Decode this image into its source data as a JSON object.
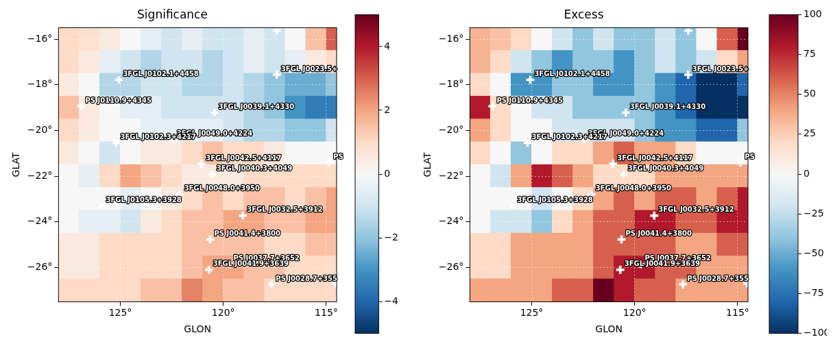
{
  "chart_data": [
    {
      "type": "heatmap",
      "title": "Significance",
      "x_label": "GLON",
      "y_label": "GLAT",
      "color": "RdBu_r",
      "grid": true,
      "xlim": [
        128,
        114.5
      ],
      "ylim": [
        -27.5,
        -15.5
      ],
      "xticks": [
        {
          "value": 125,
          "label": "125°"
        },
        {
          "value": 120,
          "label": "120°"
        },
        {
          "value": 115,
          "label": "115°"
        }
      ],
      "yticks": [
        {
          "value": -16,
          "label": "−16°"
        },
        {
          "value": -18,
          "label": "−18°"
        },
        {
          "value": -20,
          "label": "−20°"
        },
        {
          "value": -22,
          "label": "−22°"
        },
        {
          "value": -24,
          "label": "−24°"
        },
        {
          "value": -26,
          "label": "−26°"
        }
      ],
      "x": [
        127.5,
        126.5,
        125.5,
        124.5,
        123.5,
        122.5,
        121.5,
        120.5,
        119.5,
        118.5,
        117.5,
        116.5,
        115.5,
        114.5
      ],
      "y": [
        -16,
        -17,
        -18,
        -19,
        -20,
        -21,
        -22,
        -23,
        -24,
        -25,
        -26,
        -27
      ],
      "cells": [
        [
          1,
          0.8,
          0.5,
          0,
          -0.5,
          -1,
          -0.5,
          -1,
          -1,
          -0.5,
          -1,
          0,
          1.5,
          3
        ],
        [
          1,
          0.5,
          -0.5,
          -1,
          -1.5,
          -1,
          -1,
          -1.5,
          -1,
          -0.5,
          -1,
          -0.5,
          0.5,
          1
        ],
        [
          0.5,
          0,
          -1.5,
          -1.5,
          -1,
          -1,
          -1.5,
          -1.5,
          -1,
          -1.5,
          -2,
          -2.5,
          -2.5,
          -2
        ],
        [
          1.5,
          0.5,
          0,
          -0.5,
          -0.5,
          -1,
          -1,
          -1,
          -1,
          -1.5,
          -2,
          -3,
          -3.5,
          -3.5
        ],
        [
          1,
          0.5,
          0,
          0,
          -0.5,
          -0.5,
          -0.5,
          -0.5,
          -1,
          -1.5,
          -1.5,
          -2,
          -2,
          -1
        ],
        [
          0.5,
          0,
          -1,
          0,
          0.5,
          0.5,
          1,
          1.5,
          1,
          1,
          0.5,
          0,
          0,
          0
        ],
        [
          0,
          -0.5,
          1,
          2,
          1.5,
          1,
          0.5,
          0.5,
          0.5,
          1,
          1,
          1,
          1,
          1
        ],
        [
          0,
          0,
          0,
          -0.5,
          0,
          0.5,
          1,
          1.5,
          1,
          1.5,
          1.5,
          1,
          1.5,
          2
        ],
        [
          0,
          -0.5,
          -0.5,
          -1,
          0.5,
          1,
          1.5,
          1.5,
          2,
          2,
          1.5,
          1.5,
          2,
          2
        ],
        [
          0.5,
          0.5,
          1,
          1,
          1,
          1,
          1.5,
          1.5,
          1.5,
          1.5,
          1,
          1,
          1.5,
          1.5
        ],
        [
          0.5,
          0.5,
          1,
          1,
          1,
          1,
          1.5,
          2,
          2,
          1.5,
          1.5,
          1,
          1,
          1
        ],
        [
          1,
          1,
          1,
          1,
          1.5,
          1.5,
          2.5,
          2,
          1.5,
          1.5,
          1,
          1,
          1,
          1
        ]
      ],
      "colorbar_range": [
        -5,
        5
      ],
      "colorbar_ticks": [
        {
          "value": -4,
          "label": "−4"
        },
        {
          "value": -2,
          "label": "−2"
        },
        0,
        2,
        4
      ],
      "sources": [
        {
          "name": "3FGL J0102.1+4458",
          "glon": 125.07,
          "glat": -17.78
        },
        {
          "name": "3FGL J0023.5+",
          "glon": 117.4,
          "glat": -17.56
        },
        {
          "name": "PS J0110.9+4345",
          "glon": 126.9,
          "glat": -18.94
        },
        {
          "name": "3FGL J0039.1+4330",
          "glon": 120.43,
          "glat": -19.22
        },
        {
          "name": "3FGL J0049.0+4224",
          "glon": 122.46,
          "glat": -20.39
        },
        {
          "name": "3FGL J0102.3+4217",
          "glon": 125.2,
          "glat": -20.54
        },
        {
          "name": "3FGL J0042.5+4117",
          "glon": 121.05,
          "glat": -21.46
        },
        {
          "name": "3FGL J0040.3+4049",
          "glon": 120.53,
          "glat": -21.92
        },
        {
          "name": "PS",
          "glon": 114.86,
          "glat": -21.4
        },
        {
          "name": "3FGL J0048.0+3950",
          "glon": 122.1,
          "glat": -22.8
        },
        {
          "name": "3FGL J0105.3+3928",
          "glon": 125.9,
          "glat": -23.3
        },
        {
          "name": "3FGL J0032.5+3912",
          "glon": 119.05,
          "glat": -23.73
        },
        {
          "name": "PS J0041.4+3800",
          "glon": 120.64,
          "glat": -24.77
        },
        {
          "name": "PS J0037.7+3652",
          "glon": 119.71,
          "glat": -25.85
        },
        {
          "name": "3FGL J0041.9+3639",
          "glon": 120.7,
          "glat": -26.1
        },
        {
          "name": "PS J0028.7+355",
          "glon": 117.65,
          "glat": -26.74
        },
        {
          "name": null,
          "glon": 114.55,
          "glat": -26.7
        },
        {
          "name": null,
          "glon": 117.4,
          "glat": -15.63
        }
      ]
    },
    {
      "type": "heatmap",
      "title": "Excess",
      "x_label": "GLON",
      "y_label": "GLAT",
      "color": "RdBu_r",
      "grid": true,
      "xlim": [
        128,
        114.5
      ],
      "ylim": [
        -27.5,
        -15.5
      ],
      "xticks": [
        {
          "value": 125,
          "label": "125°"
        },
        {
          "value": 120,
          "label": "120°"
        },
        {
          "value": 115,
          "label": "115°"
        }
      ],
      "yticks": [
        {
          "value": -16,
          "label": "−16°"
        },
        {
          "value": -18,
          "label": "−18°"
        },
        {
          "value": -20,
          "label": "−20°"
        },
        {
          "value": -22,
          "label": "−22°"
        },
        {
          "value": -24,
          "label": "−24°"
        },
        {
          "value": -26,
          "label": "−26°"
        }
      ],
      "x": [
        127.5,
        126.5,
        125.5,
        124.5,
        123.5,
        122.5,
        121.5,
        120.5,
        119.5,
        118.5,
        117.5,
        116.5,
        115.5,
        114.5
      ],
      "y": [
        -16,
        -17,
        -18,
        -19,
        -20,
        -21,
        -22,
        -23,
        -24,
        -25,
        -26,
        -27
      ],
      "cells": [
        [
          35,
          30,
          20,
          0,
          -20,
          -40,
          -20,
          -40,
          -40,
          -20,
          -40,
          0,
          60,
          100
        ],
        [
          35,
          20,
          -20,
          -40,
          -60,
          -40,
          -40,
          -60,
          -40,
          -20,
          -40,
          -20,
          20,
          40
        ],
        [
          20,
          0,
          -60,
          -60,
          -40,
          -40,
          -60,
          -60,
          -40,
          -60,
          -80,
          -100,
          -100,
          -80
        ],
        [
          80,
          20,
          0,
          -20,
          -20,
          -40,
          -40,
          -40,
          -40,
          -60,
          -80,
          -100,
          -100,
          -100
        ],
        [
          40,
          20,
          0,
          0,
          -20,
          -20,
          -20,
          -20,
          -40,
          -60,
          -60,
          -80,
          -80,
          -40
        ],
        [
          20,
          0,
          -40,
          0,
          20,
          20,
          40,
          60,
          40,
          40,
          20,
          0,
          0,
          0
        ],
        [
          0,
          -20,
          40,
          80,
          60,
          40,
          20,
          20,
          20,
          40,
          40,
          40,
          40,
          40
        ],
        [
          0,
          0,
          0,
          -20,
          0,
          20,
          40,
          60,
          40,
          60,
          60,
          40,
          60,
          80
        ],
        [
          0,
          -20,
          -20,
          -40,
          20,
          40,
          60,
          60,
          80,
          80,
          60,
          60,
          80,
          80
        ],
        [
          20,
          20,
          40,
          40,
          40,
          40,
          60,
          60,
          60,
          60,
          40,
          40,
          60,
          60
        ],
        [
          20,
          20,
          40,
          40,
          40,
          40,
          60,
          80,
          80,
          60,
          60,
          40,
          40,
          40
        ],
        [
          40,
          40,
          40,
          40,
          60,
          60,
          100,
          80,
          60,
          60,
          40,
          40,
          40,
          40
        ]
      ],
      "colorbar_range": [
        -100,
        100
      ],
      "colorbar_ticks": [
        {
          "value": -100,
          "label": "−100"
        },
        {
          "value": -75,
          "label": "−75"
        },
        {
          "value": -50,
          "label": "−50"
        },
        {
          "value": -25,
          "label": "−25"
        },
        0,
        25,
        50,
        75,
        100
      ],
      "sources": [
        {
          "name": "3FGL J0102.1+4458",
          "glon": 125.07,
          "glat": -17.78
        },
        {
          "name": "3FGL J0023.5+",
          "glon": 117.4,
          "glat": -17.56
        },
        {
          "name": "PS J0110.9+4345",
          "glon": 126.9,
          "glat": -18.94
        },
        {
          "name": "3FGL J0039.1+4330",
          "glon": 120.43,
          "glat": -19.22
        },
        {
          "name": "3FGL J0049.0+4224",
          "glon": 122.46,
          "glat": -20.39
        },
        {
          "name": "3FGL J0102.3+4217",
          "glon": 125.2,
          "glat": -20.54
        },
        {
          "name": "3FGL J0042.5+4117",
          "glon": 121.05,
          "glat": -21.46
        },
        {
          "name": "3FGL J0040.3+4049",
          "glon": 120.53,
          "glat": -21.92
        },
        {
          "name": "PS",
          "glon": 114.86,
          "glat": -21.4
        },
        {
          "name": "3FGL J0048.0+3950",
          "glon": 122.1,
          "glat": -22.8
        },
        {
          "name": "3FGL J0105.3+3928",
          "glon": 125.9,
          "glat": -23.3
        },
        {
          "name": "3FGL J0032.5+3912",
          "glon": 119.05,
          "glat": -23.73
        },
        {
          "name": "PS J0041.4+3800",
          "glon": 120.64,
          "glat": -24.77
        },
        {
          "name": "PS J0037.7+3652",
          "glon": 119.71,
          "glat": -25.85
        },
        {
          "name": "3FGL J0041.9+3639",
          "glon": 120.7,
          "glat": -26.1
        },
        {
          "name": "PS J0028.7+355",
          "glon": 117.65,
          "glat": -26.74
        },
        {
          "name": null,
          "glon": 114.55,
          "glat": -26.7
        },
        {
          "name": null,
          "glon": 117.4,
          "glat": -15.63
        }
      ]
    }
  ]
}
